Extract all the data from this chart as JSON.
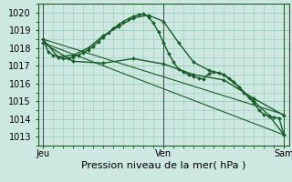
{
  "background_color": "#cce8e0",
  "grid_color": "#99ccbb",
  "line_color": "#1a5c2a",
  "xlabel": "Pression niveau de la mer( hPa )",
  "ylim": [
    1012.5,
    1020.5
  ],
  "yticks": [
    1013,
    1014,
    1015,
    1016,
    1017,
    1018,
    1019,
    1020
  ],
  "xtick_labels": [
    "Jeu",
    "Ven",
    "Sam"
  ],
  "xtick_positions": [
    0,
    24,
    48
  ],
  "xlim": [
    -1,
    49
  ],
  "series": [
    {
      "x": [
        0,
        1,
        2,
        3,
        4,
        5,
        6,
        7,
        8,
        9,
        10,
        11,
        12,
        13,
        14,
        15,
        16,
        17,
        18,
        19,
        20,
        21,
        22,
        23,
        24,
        25,
        26,
        27,
        28,
        29,
        30,
        31,
        32,
        33,
        34,
        35,
        36,
        37,
        38,
        39,
        40,
        41,
        42,
        43,
        44,
        45,
        46,
        47,
        48
      ],
      "y": [
        1018.5,
        1017.8,
        1017.6,
        1017.5,
        1017.4,
        1017.4,
        1017.5,
        1017.6,
        1017.75,
        1017.9,
        1018.1,
        1018.35,
        1018.6,
        1018.85,
        1019.1,
        1019.3,
        1019.5,
        1019.65,
        1019.78,
        1019.88,
        1019.93,
        1019.75,
        1019.4,
        1018.9,
        1018.3,
        1017.7,
        1017.2,
        1016.8,
        1016.65,
        1016.5,
        1016.4,
        1016.3,
        1016.25,
        1016.55,
        1016.65,
        1016.6,
        1016.5,
        1016.3,
        1016.1,
        1015.8,
        1015.5,
        1015.2,
        1014.9,
        1014.5,
        1014.25,
        1014.15,
        1014.1,
        1014.05,
        1013.1
      ],
      "marker": "D",
      "markersize": 2.0,
      "linewidth": 1.0
    },
    {
      "x": [
        0,
        3,
        6,
        9,
        12,
        15,
        18,
        21,
        24,
        27,
        30,
        33,
        36,
        39,
        42,
        45,
        48
      ],
      "y": [
        1018.5,
        1017.5,
        1017.6,
        1018.0,
        1018.7,
        1019.2,
        1019.7,
        1019.85,
        1019.5,
        1018.3,
        1017.2,
        1016.75,
        1016.5,
        1015.8,
        1015.0,
        1014.2,
        1013.1
      ],
      "marker": "D",
      "markersize": 2.0,
      "linewidth": 1.0
    },
    {
      "x": [
        0,
        6,
        12,
        18,
        24,
        30,
        36,
        42,
        48
      ],
      "y": [
        1018.3,
        1017.25,
        1017.15,
        1017.4,
        1017.1,
        1016.5,
        1016.2,
        1015.15,
        1014.2
      ],
      "marker": "D",
      "markersize": 2.0,
      "linewidth": 1.0
    },
    {
      "x": [
        0,
        48
      ],
      "y": [
        1018.5,
        1014.25
      ],
      "marker": null,
      "markersize": 0,
      "linewidth": 0.8
    },
    {
      "x": [
        0,
        48
      ],
      "y": [
        1018.3,
        1013.1
      ],
      "marker": null,
      "markersize": 0,
      "linewidth": 0.8
    }
  ],
  "vline_positions": [
    0,
    24,
    48
  ],
  "font_size": 7,
  "xlabel_fontsize": 8
}
